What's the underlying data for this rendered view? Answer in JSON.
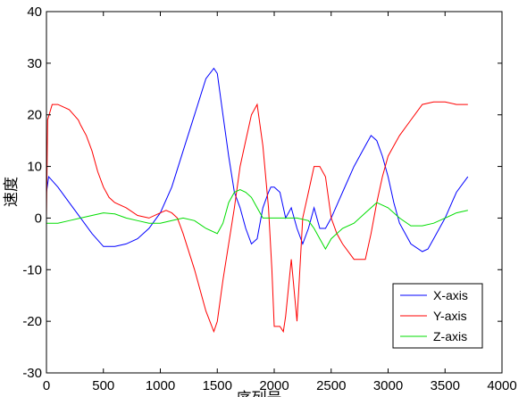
{
  "chart_data": {
    "type": "line",
    "title": "",
    "xlabel": "序列号",
    "ylabel": "速度",
    "xlim": [
      0,
      4000
    ],
    "ylim": [
      -30,
      40
    ],
    "xticks": [
      0,
      500,
      1000,
      1500,
      2000,
      2500,
      3000,
      3500,
      4000
    ],
    "yticks": [
      -30,
      -20,
      -10,
      0,
      10,
      20,
      30,
      40
    ],
    "xtick_labels": [
      "0",
      "500",
      "1000",
      "1500",
      "2000",
      "2500",
      "3000",
      "3500",
      "4000"
    ],
    "ytick_labels": [
      "-30",
      "-20",
      "-10",
      "0",
      "10",
      "20",
      "30",
      "40"
    ],
    "grid": false,
    "legend_position": "bottom-right",
    "series": [
      {
        "name": "X-axis",
        "color": "#0000ff",
        "x": [
          0,
          20,
          100,
          200,
          300,
          400,
          500,
          600,
          700,
          800,
          900,
          1000,
          1100,
          1200,
          1300,
          1400,
          1470,
          1500,
          1550,
          1600,
          1650,
          1700,
          1750,
          1800,
          1850,
          1900,
          1950,
          1970,
          2000,
          2050,
          2100,
          2150,
          2200,
          2250,
          2300,
          2350,
          2400,
          2450,
          2500,
          2600,
          2700,
          2800,
          2850,
          2900,
          2950,
          3000,
          3050,
          3100,
          3200,
          3300,
          3350,
          3400,
          3500,
          3600,
          3700
        ],
        "y": [
          5,
          8,
          6,
          3,
          0,
          -3,
          -5.5,
          -5.5,
          -5,
          -4,
          -2,
          1,
          6,
          13,
          20,
          27,
          29,
          28,
          20,
          12,
          5,
          2,
          -2,
          -5,
          -4,
          2,
          5,
          6,
          6,
          5,
          0,
          2,
          -2,
          -5,
          -2,
          2,
          -2,
          -2,
          0,
          5,
          10,
          14,
          16,
          15,
          12,
          8,
          3,
          -1,
          -5,
          -6.5,
          -6,
          -4,
          0,
          5,
          8
        ]
      },
      {
        "name": "Y-axis",
        "color": "#ff0000",
        "x": [
          0,
          10,
          50,
          100,
          200,
          240,
          280,
          300,
          350,
          400,
          450,
          500,
          550,
          600,
          700,
          800,
          900,
          1000,
          1050,
          1100,
          1150,
          1200,
          1300,
          1400,
          1470,
          1500,
          1550,
          1600,
          1650,
          1700,
          1750,
          1800,
          1850,
          1900,
          1950,
          1980,
          2000,
          2050,
          2080,
          2100,
          2150,
          2200,
          2250,
          2300,
          2350,
          2400,
          2450,
          2500,
          2550,
          2600,
          2700,
          2800,
          2850,
          2900,
          2950,
          3000,
          3050,
          3100,
          3200,
          3300,
          3400,
          3500,
          3600,
          3700
        ],
        "y": [
          0,
          19,
          22,
          22,
          21,
          20,
          19,
          18,
          16,
          13,
          9,
          6,
          4,
          3,
          2,
          0.5,
          0,
          1,
          1.5,
          1,
          0,
          -3,
          -10,
          -18,
          -22,
          -20,
          -12,
          -5,
          2,
          10,
          15,
          20,
          22,
          14,
          2,
          -10,
          -21,
          -21,
          -22,
          -19,
          -8,
          -20,
          0,
          5,
          10,
          10,
          8,
          0,
          -3,
          -5,
          -8,
          -8,
          -3,
          3,
          8,
          12,
          14,
          16,
          19,
          22,
          22.5,
          22.5,
          22,
          22
        ]
      },
      {
        "name": "Z-axis",
        "color": "#00dd00",
        "x": [
          0,
          100,
          200,
          300,
          400,
          500,
          600,
          700,
          800,
          900,
          1000,
          1100,
          1200,
          1300,
          1400,
          1500,
          1550,
          1600,
          1650,
          1700,
          1750,
          1800,
          1850,
          1900,
          2000,
          2100,
          2200,
          2300,
          2350,
          2400,
          2450,
          2500,
          2600,
          2700,
          2800,
          2900,
          3000,
          3100,
          3200,
          3300,
          3400,
          3500,
          3600,
          3700
        ],
        "y": [
          -1,
          -1,
          -0.5,
          0,
          0.5,
          1,
          0.8,
          0,
          -0.5,
          -1,
          -1,
          -0.5,
          0,
          -0.5,
          -2,
          -3,
          -1,
          3,
          5,
          5.5,
          5,
          4,
          2,
          0,
          0,
          0,
          0,
          -0.5,
          -2,
          -4,
          -6,
          -4,
          -2,
          -1,
          1,
          3,
          2,
          0,
          -1.5,
          -1.5,
          -1,
          0,
          1,
          1.5
        ]
      }
    ]
  }
}
